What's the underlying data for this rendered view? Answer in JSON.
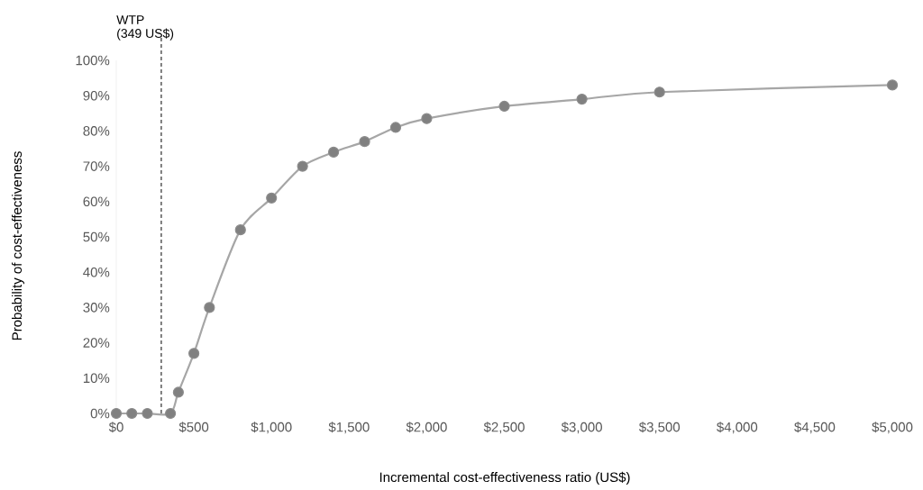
{
  "chart_data": {
    "type": "line",
    "xlabel": "Incremental cost-effectiveness ratio (US$)",
    "ylabel": "Probability of cost-effectiveness",
    "x": [
      0,
      100,
      200,
      349,
      400,
      500,
      600,
      800,
      1000,
      1200,
      1400,
      1600,
      1800,
      2000,
      2500,
      3000,
      3500,
      5000
    ],
    "series": [
      {
        "color": "#a6a6a6",
        "values": [
          0,
          0,
          0,
          0,
          6,
          17,
          30,
          52,
          61,
          70,
          74,
          77,
          81,
          83.5,
          87,
          89,
          91,
          93
        ]
      }
    ],
    "marker": "circle",
    "line_style": "solid",
    "annotations": [
      "(349 US$)"
    ],
    "xlim": [
      0,
      5000
    ],
    "xticks": [
      {
        "value": 0,
        "label": "$0"
      },
      {
        "value": 500,
        "label": "$500"
      },
      {
        "value": 1000,
        "label": "$1,000"
      },
      {
        "value": 1500,
        "label": "$1,500"
      },
      {
        "value": 2000,
        "label": "$2,000"
      },
      {
        "value": 2500,
        "label": "$2,500"
      },
      {
        "value": 3000,
        "label": "$3,000"
      },
      {
        "value": 3500,
        "label": "$3,500"
      },
      {
        "value": 4000,
        "label": "$4,000"
      },
      {
        "value": 4500,
        "label": "$4,500"
      },
      {
        "value": 5000,
        "label": "$5,000"
      }
    ],
    "ylim": [
      0,
      100
    ],
    "yticks": [
      {
        "value": 0,
        "label": "0%"
      },
      {
        "value": 10,
        "label": "10%"
      },
      {
        "value": 20,
        "label": "20%"
      },
      {
        "value": 30,
        "label": "30%"
      },
      {
        "value": 40,
        "label": "40%"
      },
      {
        "value": 50,
        "label": "50%"
      },
      {
        "value": 60,
        "label": "60%"
      },
      {
        "value": 70,
        "label": "70%"
      },
      {
        "value": 80,
        "label": "80%"
      },
      {
        "value": 90,
        "label": "90%"
      },
      {
        "value": 100,
        "label": "100%"
      }
    ],
    "ref_lines": [
      {
        "axis": "x",
        "value": 290,
        "label": "WTP",
        "color": "#000000",
        "line_style": "dashed"
      }
    ]
  }
}
